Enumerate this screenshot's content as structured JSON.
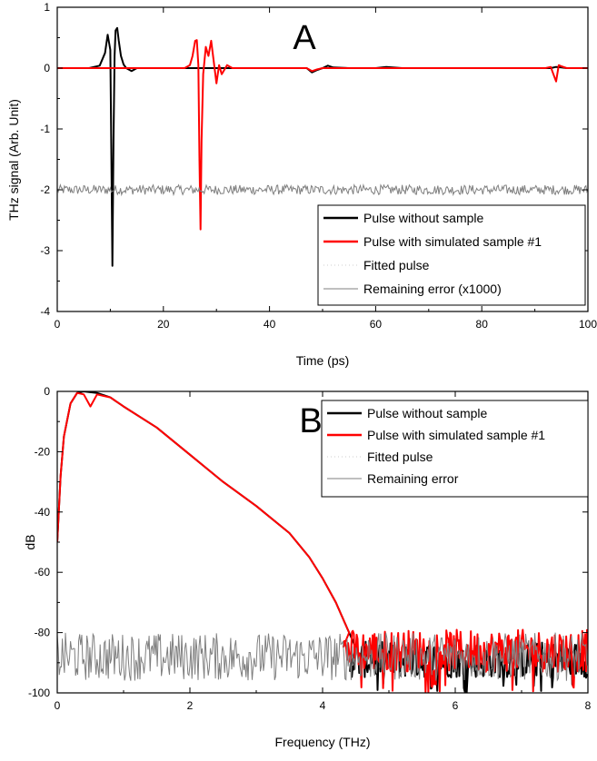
{
  "chart_data": [
    {
      "panel_label": "A",
      "type": "line",
      "xlabel": "Time (ps)",
      "ylabel": "THz signal (Arb. Unit)",
      "xlim": [
        0,
        100
      ],
      "ylim": [
        -4,
        1
      ],
      "xticks": [
        0,
        20,
        40,
        60,
        80,
        100
      ],
      "yticks": [
        -4,
        -3,
        -2,
        -1,
        0,
        1
      ],
      "legend_position": "bottom-right",
      "grid": false,
      "series": [
        {
          "name": "Pulse without sample",
          "color": "#000000",
          "x": [
            0,
            6,
            8,
            9,
            9.5,
            10,
            10.2,
            10.4,
            10.6,
            10.8,
            11,
            11.3,
            11.6,
            12,
            12.5,
            13,
            14,
            15,
            20,
            30,
            40,
            47,
            48,
            49,
            50,
            51,
            52,
            55,
            60,
            62,
            65,
            70,
            80,
            90,
            93,
            94,
            95,
            96,
            100
          ],
          "y": [
            0,
            0,
            0.04,
            0.25,
            0.55,
            0.3,
            -1.5,
            -3.25,
            -1.2,
            0.2,
            0.62,
            0.66,
            0.45,
            0.2,
            0.06,
            0.0,
            -0.05,
            0.0,
            0.0,
            0.0,
            0.0,
            0.0,
            -0.07,
            -0.03,
            0.0,
            0.04,
            0.01,
            0.0,
            0.0,
            0.02,
            0.0,
            0.0,
            0.0,
            0.0,
            0.0,
            0.02,
            0.01,
            0.0,
            0.0
          ]
        },
        {
          "name": "Pulse with simulated sample #1",
          "color": "#ff0000",
          "x": [
            0,
            24,
            25,
            25.5,
            26,
            26.3,
            26.6,
            26.8,
            27,
            27.2,
            27.5,
            28,
            28.5,
            29,
            29.5,
            30,
            30.5,
            31,
            32,
            33,
            35,
            40,
            47,
            48,
            49,
            50,
            55,
            60,
            65,
            70,
            80,
            90,
            92,
            93,
            93.5,
            94,
            94.5,
            95,
            96,
            100
          ],
          "y": [
            0,
            0,
            0.05,
            0.2,
            0.45,
            0.46,
            0.05,
            -1.5,
            -2.65,
            -1.2,
            -0.1,
            0.35,
            0.2,
            0.45,
            0.1,
            -0.25,
            0.05,
            -0.1,
            0.05,
            0.0,
            0.0,
            0.0,
            0.0,
            -0.05,
            -0.02,
            0.0,
            0.0,
            0.0,
            0.0,
            0.0,
            0.0,
            0.0,
            0.0,
            0.02,
            -0.1,
            -0.22,
            0.05,
            0.03,
            0.0,
            0.0
          ]
        },
        {
          "name": "Fitted pulse",
          "color": "#cccccc"
        },
        {
          "name": "Remaining error (x1000)",
          "color": "#7f7f7f",
          "noise_center": -2,
          "noise_amplitude": 0.08
        }
      ]
    },
    {
      "panel_label": "B",
      "type": "line",
      "xlabel": "Frequency (THz)",
      "ylabel": "dB",
      "xlim": [
        0,
        8
      ],
      "ylim": [
        -100,
        0
      ],
      "xticks": [
        0,
        2,
        4,
        6,
        8
      ],
      "yticks": [
        -100,
        -80,
        -60,
        -40,
        -20,
        0
      ],
      "legend_position": "top-right",
      "grid": false,
      "series": [
        {
          "name": "Pulse without sample",
          "color": "#000000",
          "x": [
            0,
            0.05,
            0.1,
            0.2,
            0.3,
            0.4,
            0.6,
            0.8,
            1.0,
            1.5,
            2.0,
            2.5,
            3.0,
            3.5,
            3.8,
            4.0,
            4.2,
            4.3,
            4.4,
            4.5
          ],
          "y": [
            -50,
            -28,
            -15,
            -4,
            -0.5,
            0,
            -0.5,
            -2,
            -5,
            -12,
            -21,
            -30,
            -38,
            -47,
            -55,
            -62,
            -70,
            -75,
            -80,
            -85
          ],
          "noise_floor_from_x": 4.4,
          "noise_floor_center": -89,
          "noise_floor_amplitude": 6
        },
        {
          "name": "Pulse with simulated sample #1",
          "color": "#ff0000",
          "x": [
            0,
            0.05,
            0.1,
            0.2,
            0.3,
            0.4,
            0.5,
            0.6,
            0.7,
            0.8,
            1.0,
            1.5,
            2.0,
            2.5,
            3.0,
            3.5,
            3.8,
            4.0,
            4.2,
            4.3,
            4.4
          ],
          "y": [
            -50,
            -28,
            -15,
            -4,
            -0.5,
            -1,
            -5,
            -1,
            -1.5,
            -2,
            -5,
            -12,
            -21,
            -30,
            -38,
            -47,
            -55,
            -62,
            -70,
            -75,
            -80
          ],
          "noise_floor_from_x": 4.3,
          "noise_floor_center": -86,
          "noise_floor_amplitude": 7
        },
        {
          "name": "Fitted pulse",
          "color": "#cccccc"
        },
        {
          "name": "Remaining error",
          "color": "#7f7f7f",
          "noise_center": -88,
          "noise_amplitude": 8
        }
      ]
    }
  ]
}
